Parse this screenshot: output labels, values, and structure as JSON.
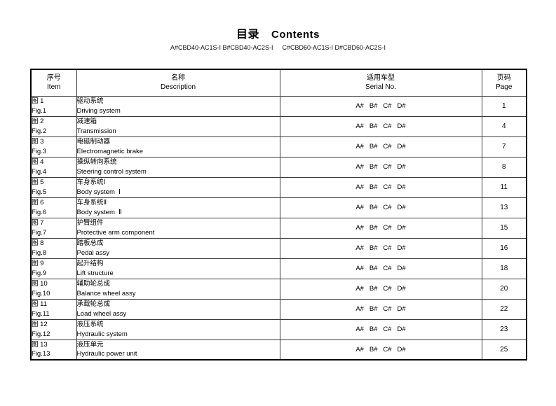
{
  "page": {
    "title_cn": "目录",
    "title_en": "Contents",
    "models_left": "A#CBD40-AC1S-I B#CBD40-AC2S-I",
    "models_right": "C#CBD60-AC1S-I D#CBD60-AC2S-I"
  },
  "table": {
    "headers": {
      "item_cn": "序号",
      "item_en": "Item",
      "desc_cn": "名称",
      "desc_en": "Description",
      "serial_cn": "适用车型",
      "serial_en": "Serial No.",
      "page_cn": "页码",
      "page_en": "Page"
    },
    "rows": [
      {
        "item_cn": "图 1",
        "item_en": "Fig.1",
        "desc_cn": "驱动系统",
        "desc_en": "Driving system",
        "serial": "A#   B#   C#   D#",
        "page": "1"
      },
      {
        "item_cn": "图 2",
        "item_en": "Fig.2",
        "desc_cn": "减速箱",
        "desc_en": "Transmission",
        "serial": "A#   B#   C#   D#",
        "page": "4"
      },
      {
        "item_cn": "图 3",
        "item_en": "Fig.3",
        "desc_cn": "电磁制动器",
        "desc_en": "Electromagnetic brake",
        "serial": "A#   B#   C#   D#",
        "page": "7"
      },
      {
        "item_cn": "图 4",
        "item_en": "Fig.4",
        "desc_cn": "操纵转向系统",
        "desc_en": "Steering control system",
        "serial": "A#   B#   C#   D#",
        "page": "8"
      },
      {
        "item_cn": "图 5",
        "item_en": "Fig.5",
        "desc_cn": "车身系统Ⅰ",
        "desc_en": "Body system  Ⅰ",
        "serial": "A#   B#   C#   D#",
        "page": "11"
      },
      {
        "item_cn": "图 6",
        "item_en": "Fig.6",
        "desc_cn": "车身系统Ⅱ",
        "desc_en": "Body system  Ⅱ",
        "serial": "A#   B#   C#   D#",
        "page": "13"
      },
      {
        "item_cn": "图 7",
        "item_en": "Fig.7",
        "desc_cn": "护臂组件",
        "desc_en": "Protective arm component",
        "serial": "A#   B#   C#   D#",
        "page": "15"
      },
      {
        "item_cn": "图 8",
        "item_en": "Fig.8",
        "desc_cn": "踏板总成",
        "desc_en": "Pedal assy",
        "serial": "A#   B#   C#   D#",
        "page": "16"
      },
      {
        "item_cn": "图 9",
        "item_en": "Fig.9",
        "desc_cn": "起升结构",
        "desc_en": "Lift structure",
        "serial": "A#   B#   C#   D#",
        "page": "18"
      },
      {
        "item_cn": "图 10",
        "item_en": "Fig.10",
        "desc_cn": "辅助轮总成",
        "desc_en": "Balance wheel assy",
        "serial": "A#   B#   C#   D#",
        "page": "20"
      },
      {
        "item_cn": "图 11",
        "item_en": "Fig.11",
        "desc_cn": "承载轮总成",
        "desc_en": "Load wheel assy",
        "serial": "A#   B#   C#   D#",
        "page": "22"
      },
      {
        "item_cn": "图 12",
        "item_en": "Fig.12",
        "desc_cn": "液压系统",
        "desc_en": "Hydraulic system",
        "serial": "A#   B#   C#   D#",
        "page": "23"
      },
      {
        "item_cn": "图 13",
        "item_en": "Fig.13",
        "desc_cn": "液压单元",
        "desc_en": "Hydraulic power unit",
        "serial": "A#   B#   C#   D#",
        "page": "25"
      }
    ]
  }
}
